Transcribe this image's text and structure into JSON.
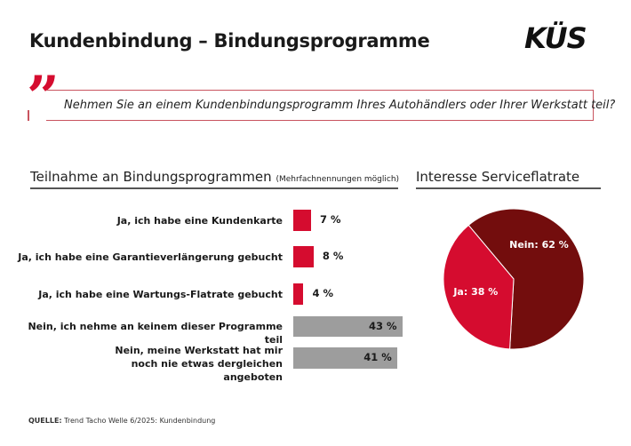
{
  "header": {
    "title": "Kundenbindung – Bindungsprogramme",
    "logo": "KÜS"
  },
  "question": "Nehmen Sie an einem Kundenbindungsprogramm Ihres Autohändlers oder Ihrer Werkstatt teil?",
  "source": {
    "label": "QUELLE:",
    "text": "Trend Tacho Welle 6/2025: Kundenbindung"
  },
  "chart_data": [
    {
      "type": "bar",
      "orientation": "horizontal",
      "title": "Teilnahme an Bindungsprogrammen",
      "subtitle": "(Mehrfachnennungen möglich)",
      "categories": [
        "Ja, ich habe eine Kundenkarte",
        "Ja, ich habe eine Garantieverlängerung gebucht",
        "Ja, ich habe eine Wartungs-Flatrate gebucht",
        "Nein, ich nehme an keinem dieser Programme teil",
        "Nein, meine Werkstatt hat mir noch nie etwas dergleichen angeboten"
      ],
      "values": [
        7,
        8,
        4,
        43,
        41
      ],
      "labels": [
        "7 %",
        "8 %",
        "4 %",
        "43 %",
        "41 %"
      ],
      "colors": [
        "#d50c2f",
        "#d50c2f",
        "#d50c2f",
        "#9d9d9d",
        "#9d9d9d"
      ]
    },
    {
      "type": "pie",
      "title": "Interesse Serviceflatrate",
      "slices": [
        {
          "label": "Nein: 62 %",
          "value": 62,
          "color": "#730d0d"
        },
        {
          "label": "Ja: 38 %",
          "value": 38,
          "color": "#d50c2f"
        }
      ]
    }
  ]
}
